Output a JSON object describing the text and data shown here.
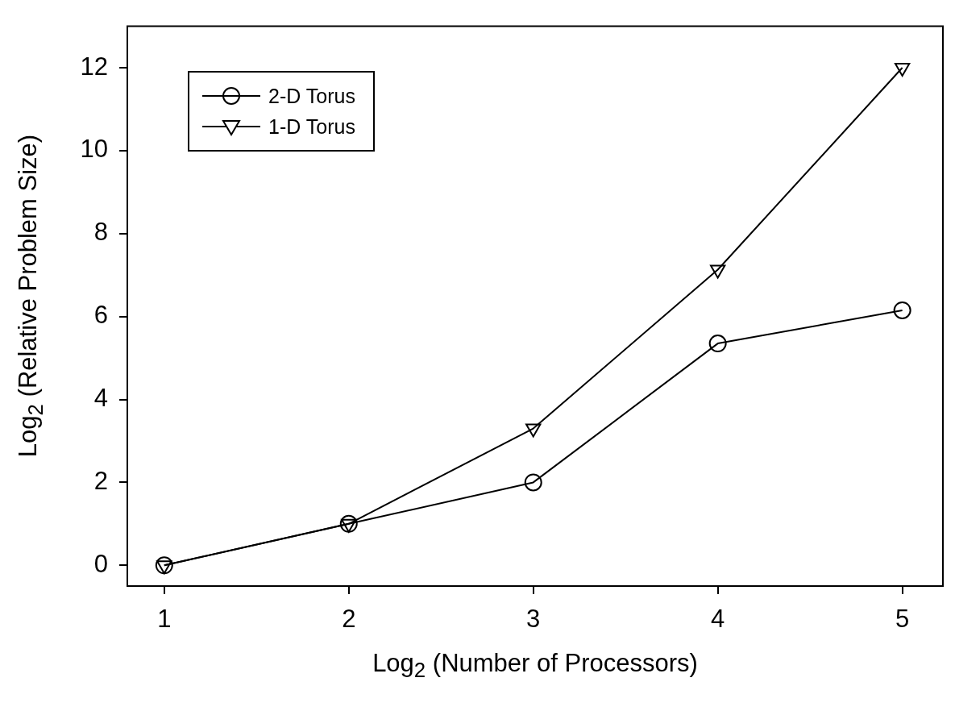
{
  "chart_data": {
    "type": "line",
    "xlabel": "Log$_{2}$ (Number of Processors)",
    "ylabel": "Log$_{2}$ (Relative Problem Size)",
    "x": [
      1,
      2,
      3,
      4,
      5
    ],
    "series": [
      {
        "name": "2-D Torus",
        "color": "#000000",
        "marker": "circle",
        "values": [
          0,
          1,
          2.0,
          5.35,
          6.15
        ]
      },
      {
        "name": "1-D Torus",
        "color": "#000000",
        "marker": "triangle",
        "values": [
          0,
          1,
          3.3,
          7.13,
          12.0
        ]
      }
    ],
    "xlim": [
      0.8,
      5.22
    ],
    "ylim": [
      -0.5,
      13
    ],
    "xticks": [
      1,
      2,
      3,
      4,
      5
    ],
    "yticks": [
      0,
      2,
      4,
      6,
      8,
      10,
      12
    ],
    "grid": false,
    "legend": "top left",
    "line_style": "solid"
  }
}
